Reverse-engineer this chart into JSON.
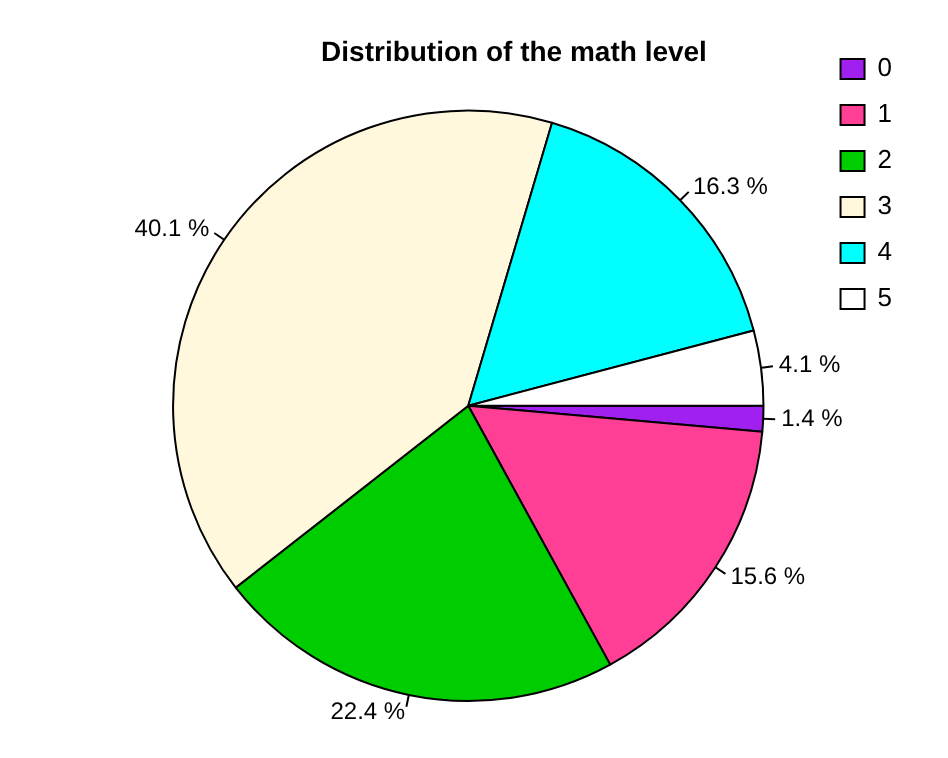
{
  "chart_data": {
    "type": "pie",
    "title": "Distribution of the math level",
    "categories": [
      "0",
      "1",
      "2",
      "3",
      "4",
      "5"
    ],
    "values": [
      1.4,
      15.6,
      22.4,
      40.1,
      16.3,
      4.1
    ],
    "colors": [
      "#a020f0",
      "#ff3e96",
      "#00cd00",
      "#fff8dc",
      "#00ffff",
      "#ffffff"
    ],
    "value_labels": [
      "1.4 %",
      "15.6 %",
      "22.4 %",
      "40.1 %",
      "16.3 %",
      "4.1 %"
    ],
    "legend": "top right"
  }
}
